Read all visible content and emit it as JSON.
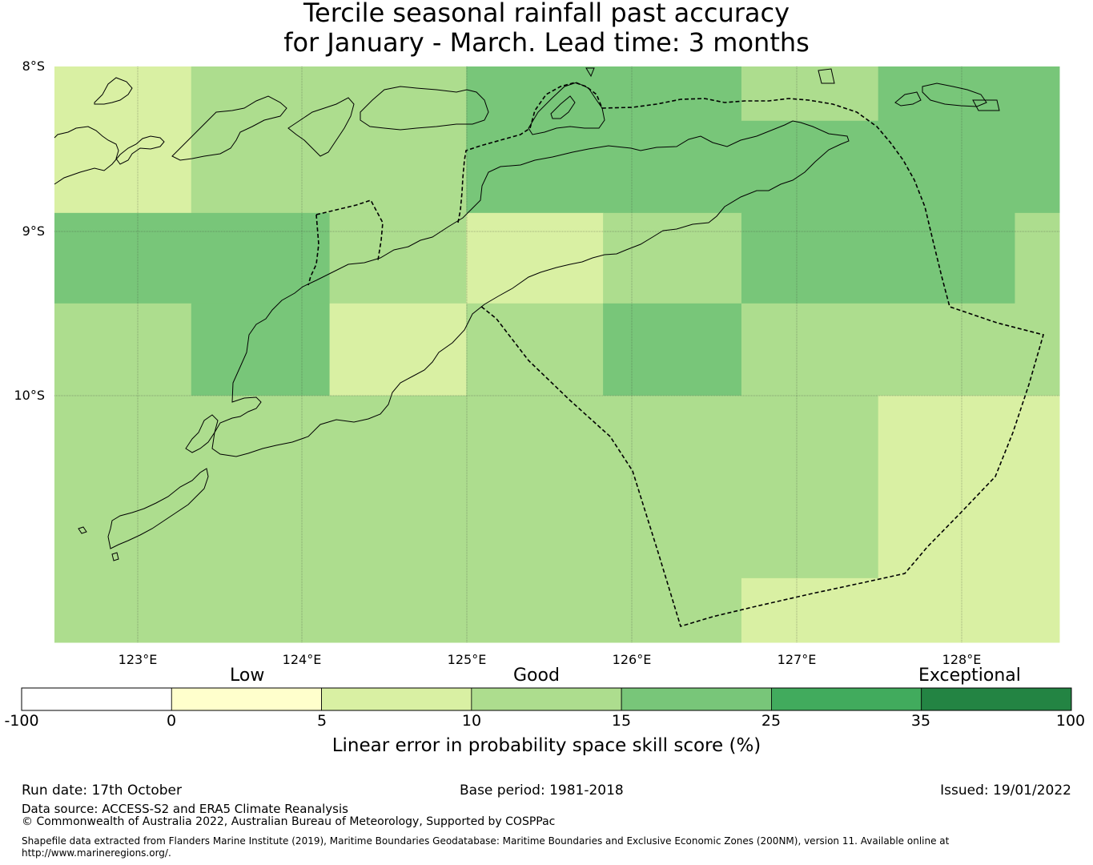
{
  "title": {
    "line1": "Tercile seasonal rainfall past accuracy",
    "line2": "for January - March. Lead time: 3 months"
  },
  "map": {
    "lat_labels": [
      "8°S",
      "9°S",
      "10°S"
    ],
    "lon_labels": [
      "123°E",
      "124°E",
      "125°E",
      "126°E",
      "127°E",
      "128°E"
    ],
    "extent": {
      "lon": [
        122.5,
        128.6
      ],
      "lat": [
        -11.5,
        -8.0
      ]
    },
    "grid_cells": [
      {
        "lon": [
          122.5,
          123.33
        ],
        "lat": [
          -8.89,
          -8.0
        ],
        "value": 7
      },
      {
        "lon": [
          123.33,
          125.0
        ],
        "lat": [
          -8.89,
          -8.0
        ],
        "value": 12
      },
      {
        "lon": [
          125.0,
          126.67
        ],
        "lat": [
          -8.89,
          -8.0
        ],
        "value": 18
      },
      {
        "lon": [
          126.67,
          127.5
        ],
        "lat": [
          -8.33,
          -8.0
        ],
        "value": 12
      },
      {
        "lon": [
          126.67,
          127.5
        ],
        "lat": [
          -8.89,
          -8.33
        ],
        "value": 18
      },
      {
        "lon": [
          127.5,
          128.6
        ],
        "lat": [
          -8.89,
          -8.0
        ],
        "value": 18
      },
      {
        "lon": [
          122.5,
          124.17
        ],
        "lat": [
          -9.44,
          -8.89
        ],
        "value": 18
      },
      {
        "lon": [
          124.17,
          125.0
        ],
        "lat": [
          -9.44,
          -8.89
        ],
        "value": 12
      },
      {
        "lon": [
          125.0,
          125.83
        ],
        "lat": [
          -9.44,
          -8.89
        ],
        "value": 7
      },
      {
        "lon": [
          125.83,
          126.67
        ],
        "lat": [
          -9.44,
          -8.89
        ],
        "value": 12
      },
      {
        "lon": [
          126.67,
          128.33
        ],
        "lat": [
          -9.44,
          -8.89
        ],
        "value": 18
      },
      {
        "lon": [
          128.33,
          128.6
        ],
        "lat": [
          -9.44,
          -8.89
        ],
        "value": 12
      },
      {
        "lon": [
          122.5,
          123.33
        ],
        "lat": [
          -10.0,
          -9.44
        ],
        "value": 12
      },
      {
        "lon": [
          123.33,
          124.17
        ],
        "lat": [
          -10.0,
          -9.44
        ],
        "value": 18
      },
      {
        "lon": [
          124.17,
          125.0
        ],
        "lat": [
          -10.0,
          -9.44
        ],
        "value": 7
      },
      {
        "lon": [
          125.0,
          125.83
        ],
        "lat": [
          -10.0,
          -9.44
        ],
        "value": 12
      },
      {
        "lon": [
          125.83,
          126.67
        ],
        "lat": [
          -10.0,
          -9.44
        ],
        "value": 18
      },
      {
        "lon": [
          126.67,
          128.6
        ],
        "lat": [
          -10.0,
          -9.44
        ],
        "value": 12
      },
      {
        "lon": [
          122.5,
          126.67
        ],
        "lat": [
          -11.5,
          -10.0
        ],
        "value": 12
      },
      {
        "lon": [
          126.67,
          127.5
        ],
        "lat": [
          -11.11,
          -10.0
        ],
        "value": 12
      },
      {
        "lon": [
          126.67,
          127.5
        ],
        "lat": [
          -11.5,
          -11.11
        ],
        "value": 7
      },
      {
        "lon": [
          127.5,
          128.6
        ],
        "lat": [
          -11.5,
          -10.0
        ],
        "value": 7
      }
    ]
  },
  "colorbar": {
    "category_labels": [
      "Low",
      "Good",
      "Exceptional"
    ],
    "tick_labels": [
      "-100",
      "0",
      "5",
      "10",
      "15",
      "25",
      "35",
      "100"
    ],
    "bins": [
      {
        "from": -100,
        "to": 0,
        "color": "#ffffff"
      },
      {
        "from": 0,
        "to": 5,
        "color": "#ffffcc"
      },
      {
        "from": 5,
        "to": 10,
        "color": "#d9f0a3"
      },
      {
        "from": 10,
        "to": 15,
        "color": "#addd8e"
      },
      {
        "from": 15,
        "to": 25,
        "color": "#78c679"
      },
      {
        "from": 25,
        "to": 35,
        "color": "#41ab5d"
      },
      {
        "from": 35,
        "to": 100,
        "color": "#238443"
      }
    ],
    "title": "Linear error in probability space skill score (%)"
  },
  "footer": {
    "run_date": "Run date: 17th October",
    "base_period": "Base period: 1981-2018",
    "issued": "Issued: 19/01/2022",
    "data_source": "Data source: ACCESS-S2 and ERA5 Climate Reanalysis",
    "copyright": "© Commonwealth of Australia 2022, Australian Bureau of Meteorology, Supported by COSPPac",
    "shapefile": "Shapefile data extracted from Flanders Marine Institute (2019), Maritime Boundaries Geodatabase: Maritime Boundaries and Exclusive Economic Zones (200NM), version 11. Available online at http://www.marineregions.org/."
  }
}
